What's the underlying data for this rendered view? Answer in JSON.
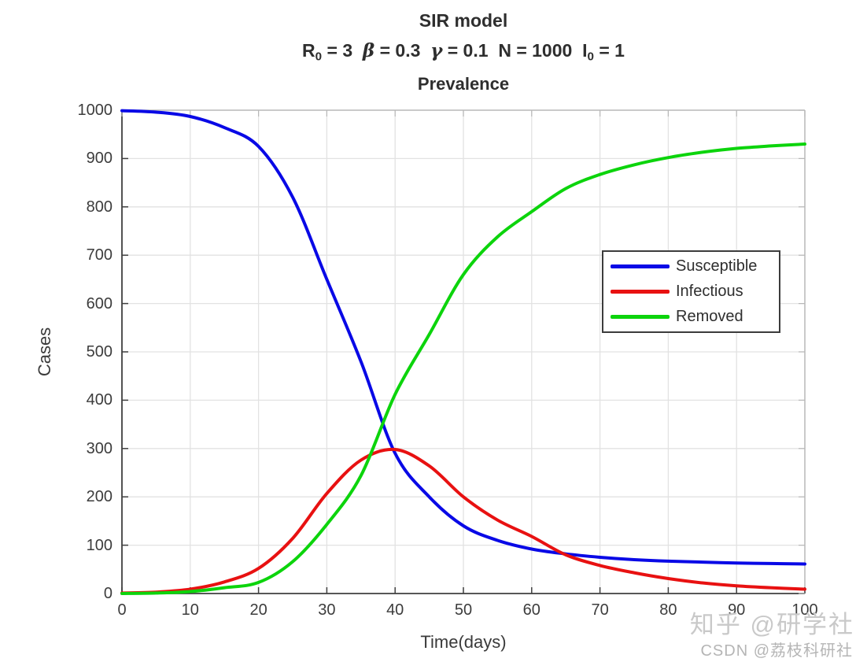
{
  "chart_data": {
    "type": "line",
    "title": "SIR model",
    "subtitle": "R0 = 3  β = 0.3  γ = 0.1  N = 1000  I0 = 1",
    "subtitle_parts": [
      {
        "text": "R",
        "style": "normal"
      },
      {
        "text": "0",
        "style": "sub"
      },
      {
        "text": " = 3  ",
        "style": "normal"
      },
      {
        "text": "β",
        "style": "greek"
      },
      {
        "text": " = 0.3  ",
        "style": "normal"
      },
      {
        "text": "γ",
        "style": "greek"
      },
      {
        "text": " = 0.1  ",
        "style": "normal"
      },
      {
        "text": "N = 1000  I",
        "style": "normal"
      },
      {
        "text": "0",
        "style": "sub"
      },
      {
        "text": " = 1",
        "style": "normal"
      }
    ],
    "axes_title": "Prevalence",
    "xlabel": "Time(days)",
    "ylabel": "Cases",
    "xlim": [
      0,
      100
    ],
    "ylim": [
      0,
      1000
    ],
    "xticks": [
      0,
      10,
      20,
      30,
      40,
      50,
      60,
      70,
      80,
      90,
      100
    ],
    "yticks": [
      0,
      100,
      200,
      300,
      400,
      500,
      600,
      700,
      800,
      900,
      1000
    ],
    "grid": true,
    "legend_position": "upper right",
    "parameters": {
      "R0": 3,
      "beta": 0.3,
      "gamma": 0.1,
      "N": 1000,
      "I0": 1
    },
    "x": [
      0,
      5,
      10,
      15,
      20,
      25,
      30,
      35,
      40,
      45,
      50,
      55,
      60,
      65,
      70,
      75,
      80,
      85,
      90,
      95,
      100
    ],
    "series": [
      {
        "name": "Susceptible",
        "color": "#0909e6",
        "values": [
          999,
          996,
          987,
          964,
          925,
          820,
          650,
          480,
          290,
          200,
          140,
          110,
          92,
          82,
          75,
          70,
          67,
          65,
          63,
          62,
          61
        ]
      },
      {
        "name": "Infectious",
        "color": "#e81111",
        "values": [
          1,
          3,
          9,
          24,
          52,
          114,
          207,
          276,
          298,
          264,
          200,
          152,
          118,
          80,
          58,
          43,
          31,
          22,
          16,
          12,
          9
        ]
      },
      {
        "name": "Removed",
        "color": "#0cd40c",
        "values": [
          0,
          1,
          4,
          12,
          23,
          66,
          143,
          244,
          412,
          536,
          660,
          738,
          790,
          838,
          867,
          887,
          902,
          913,
          921,
          926,
          930
        ]
      }
    ]
  },
  "watermarks": {
    "line1": "知乎 @研学社",
    "line2": "CSDN @荔枝科研社"
  },
  "colors": {
    "grid": "#e2e2e2",
    "axis_dark": "#3f3f3f",
    "axis_light": "#b8b8b8",
    "tick_text": "#3c3c3c"
  }
}
